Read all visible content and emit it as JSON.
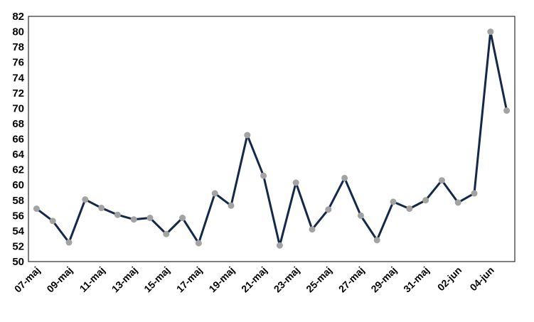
{
  "chart_data": {
    "type": "line",
    "title": "",
    "xlabel": "",
    "ylabel": "",
    "ylim": [
      50,
      82
    ],
    "y_ticks": [
      50,
      52,
      54,
      56,
      58,
      60,
      62,
      64,
      66,
      68,
      70,
      72,
      74,
      76,
      78,
      80,
      82
    ],
    "y_tick_labels": [
      "50",
      "52",
      "54",
      "56",
      "58",
      "60",
      "62",
      "64",
      "66",
      "68",
      "70",
      "72",
      "74",
      "76",
      "78",
      "80",
      "82"
    ],
    "x_tick_labels": [
      "07-maj",
      "09-maj",
      "11-maj",
      "13-maj",
      "15-maj",
      "17-maj",
      "19-maj",
      "21-maj",
      "23-maj",
      "25-maj",
      "27-maj",
      "29-maj",
      "31-maj",
      "02-jun",
      "04-jun"
    ],
    "x_tick_interval": 2,
    "grid": false,
    "legend": "none",
    "colors": {
      "line": "#14294a",
      "marker": "#a3a3a3",
      "axis": "#000000"
    },
    "series": [
      {
        "values": [
          56.9,
          55.3,
          52.5,
          58.1,
          57.0,
          56.1,
          55.5,
          55.7,
          53.6,
          55.7,
          52.4,
          58.9,
          57.3,
          66.5,
          61.2,
          52.1,
          60.3,
          54.2,
          56.8,
          60.9,
          56.0,
          52.8,
          57.8,
          56.9,
          58.0,
          60.6,
          57.7,
          58.9,
          80.0,
          69.7
        ]
      }
    ]
  }
}
